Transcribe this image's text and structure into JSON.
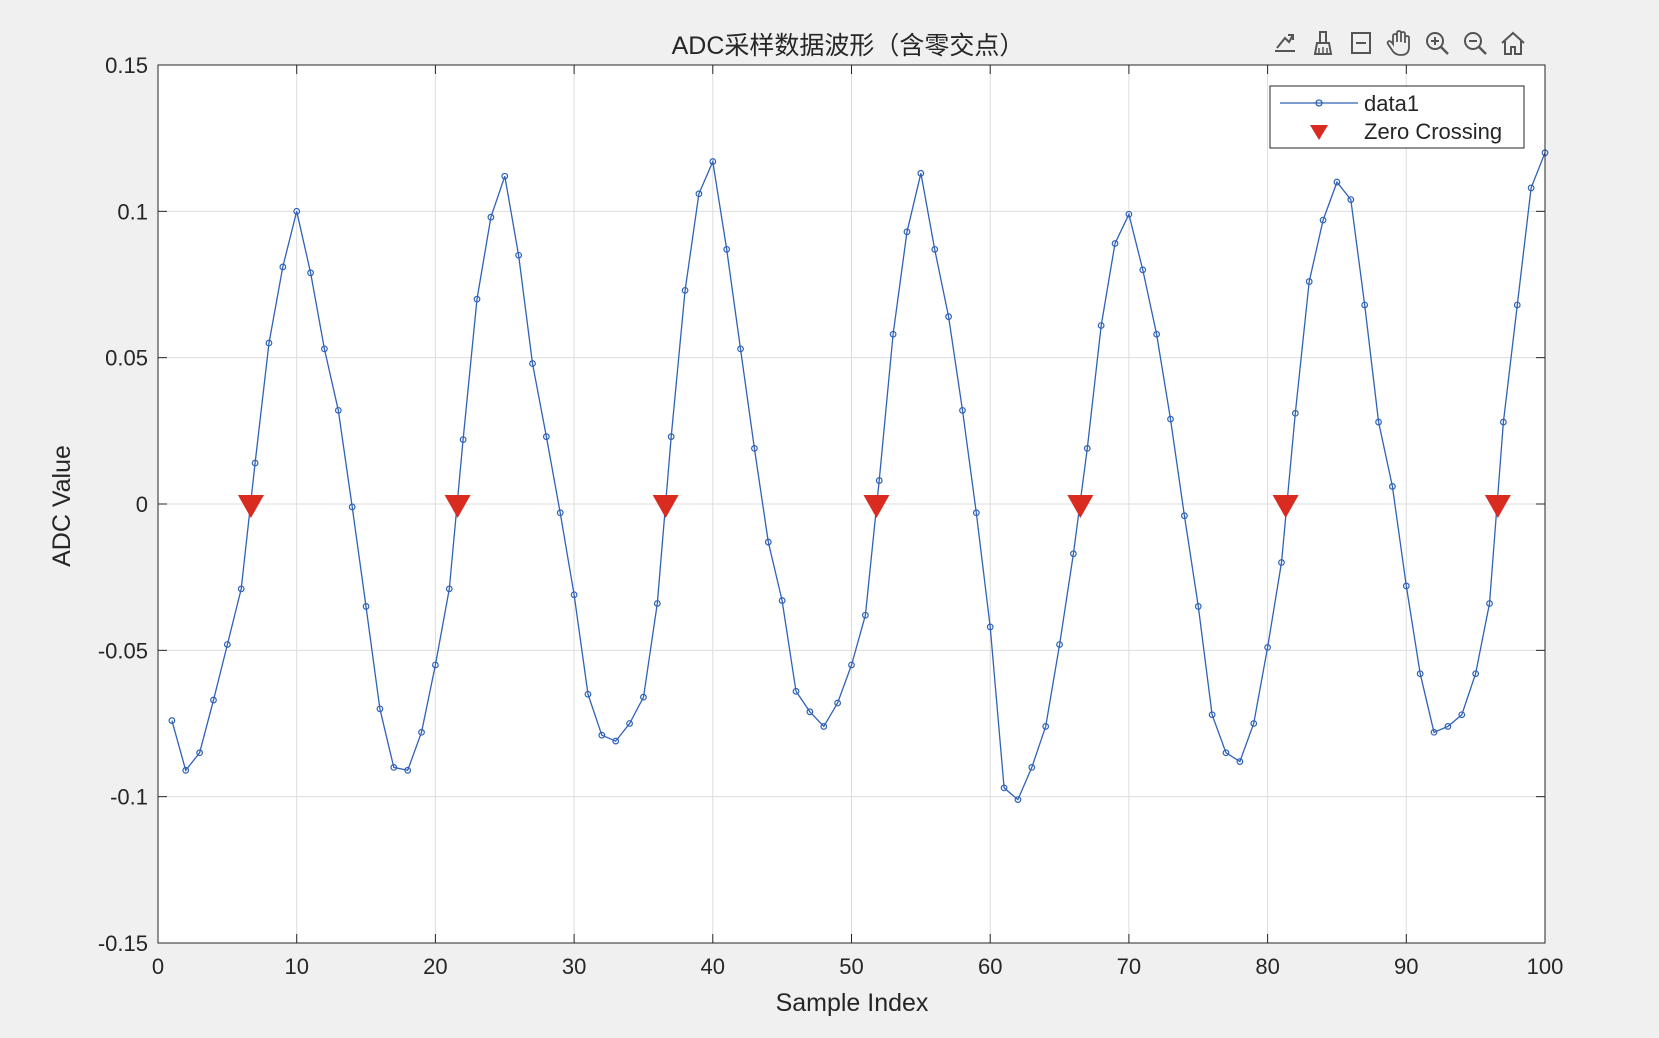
{
  "colors": {
    "line": "#2f62b8",
    "marker": "#d92b20",
    "grid": "#dddddd",
    "axes": "#262626",
    "background": "#f0f0f0",
    "plot_bg": "#ffffff"
  },
  "toolbar": [
    {
      "name": "export-icon"
    },
    {
      "name": "brush-icon"
    },
    {
      "name": "datatip-icon"
    },
    {
      "name": "pan-hand-icon"
    },
    {
      "name": "zoom-in-icon"
    },
    {
      "name": "zoom-out-icon"
    },
    {
      "name": "home-icon"
    }
  ],
  "chart_data": {
    "type": "line",
    "title": "ADC采样数据波形（含零交点）",
    "xlabel": "Sample Index",
    "ylabel": "ADC Value",
    "xlim": [
      0,
      100
    ],
    "ylim": [
      -0.15,
      0.15
    ],
    "xticks": [
      0,
      10,
      20,
      30,
      40,
      50,
      60,
      70,
      80,
      90,
      100
    ],
    "xtick_labels": [
      "0",
      "10",
      "20",
      "30",
      "40",
      "50",
      "60",
      "70",
      "80",
      "90",
      "100"
    ],
    "yticks": [
      -0.15,
      -0.1,
      -0.05,
      0,
      0.05,
      0.1,
      0.15
    ],
    "ytick_labels": [
      "-0.15",
      "-0.1",
      "-0.05",
      "0",
      "0.05",
      "0.1",
      "0.15"
    ],
    "grid": true,
    "legend": {
      "position": "top-right",
      "entries": [
        "data1",
        "Zero Crossing"
      ]
    },
    "series": [
      {
        "name": "data1",
        "x": [
          1,
          2,
          3,
          4,
          5,
          6,
          7,
          8,
          9,
          10,
          11,
          12,
          13,
          14,
          15,
          16,
          17,
          18,
          19,
          20,
          21,
          22,
          23,
          24,
          25,
          26,
          27,
          28,
          29,
          30,
          31,
          32,
          33,
          34,
          35,
          36,
          37,
          38,
          39,
          40,
          41,
          42,
          43,
          44,
          45,
          46,
          47,
          48,
          49,
          50,
          51,
          52,
          53,
          54,
          55,
          56,
          57,
          58,
          59,
          60,
          61,
          62,
          63,
          64,
          65,
          66,
          67,
          68,
          69,
          70,
          71,
          72,
          73,
          74,
          75,
          76,
          77,
          78,
          79,
          80,
          81,
          82,
          83,
          84,
          85,
          86,
          87,
          88,
          89,
          90,
          91,
          92,
          93,
          94,
          95,
          96,
          97,
          98,
          99,
          100
        ],
        "y": [
          -0.074,
          -0.091,
          -0.085,
          -0.067,
          -0.048,
          -0.029,
          0.014,
          0.055,
          0.081,
          0.1,
          0.079,
          0.053,
          0.032,
          -0.001,
          -0.035,
          -0.07,
          -0.09,
          -0.091,
          -0.078,
          -0.055,
          -0.029,
          0.022,
          0.07,
          0.098,
          0.112,
          0.085,
          0.048,
          0.023,
          -0.003,
          -0.031,
          -0.065,
          -0.079,
          -0.081,
          -0.075,
          -0.066,
          -0.034,
          0.023,
          0.073,
          0.106,
          0.117,
          0.087,
          0.053,
          0.019,
          -0.013,
          -0.033,
          -0.064,
          -0.071,
          -0.076,
          -0.068,
          -0.055,
          -0.038,
          0.008,
          0.058,
          0.093,
          0.113,
          0.087,
          0.064,
          0.032,
          -0.003,
          -0.042,
          -0.097,
          -0.101,
          -0.09,
          -0.076,
          -0.048,
          -0.017,
          0.019,
          0.061,
          0.089,
          0.099,
          0.08,
          0.058,
          0.029,
          -0.004,
          -0.035,
          -0.072,
          -0.085,
          -0.088,
          -0.075,
          -0.049,
          -0.02,
          0.031,
          0.076,
          0.097,
          0.11,
          0.104,
          0.068,
          0.028,
          0.006,
          -0.028,
          -0.058,
          -0.078,
          -0.076,
          -0.072,
          -0.058,
          -0.034,
          0.028,
          0.068,
          0.108,
          0.12
        ]
      },
      {
        "name": "Zero Crossing",
        "x": [
          6.7,
          21.6,
          36.6,
          51.8,
          66.5,
          81.3,
          96.6
        ],
        "y": [
          0,
          0,
          0,
          0,
          0,
          0,
          0
        ]
      }
    ]
  }
}
